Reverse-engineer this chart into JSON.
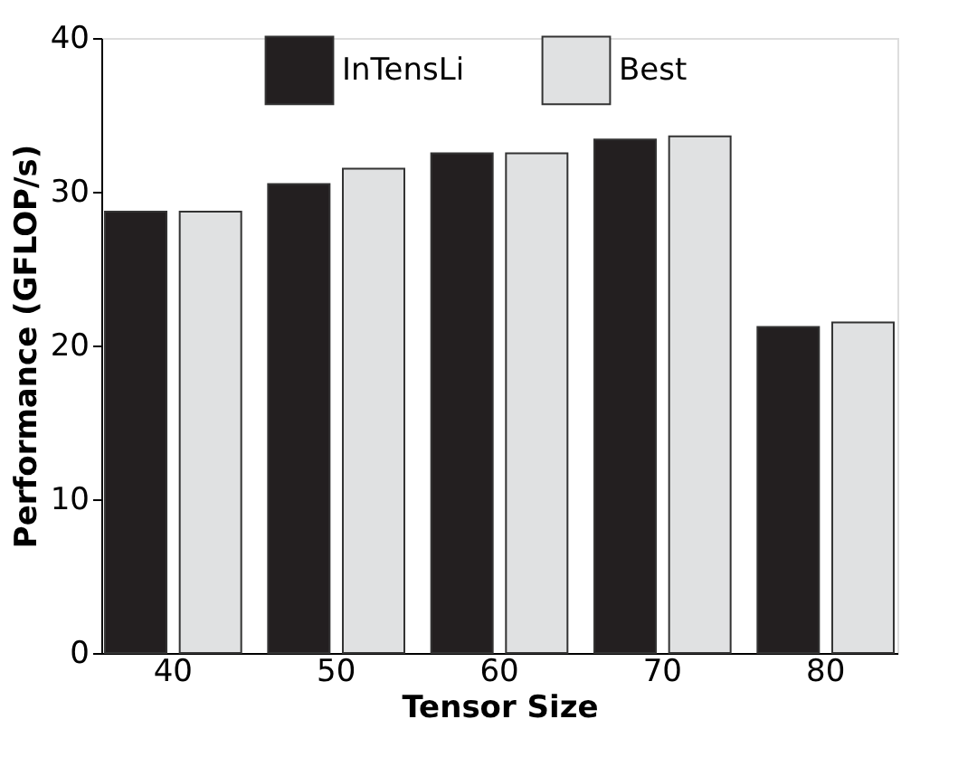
{
  "chart_data": {
    "type": "bar",
    "xlabel": "Tensor Size",
    "ylabel": "Performance (GFLOP/s)",
    "categories": [
      "40",
      "50",
      "60",
      "70",
      "80"
    ],
    "series": [
      {
        "name": "InTensLi",
        "color": "#231f20",
        "values": [
          28.7,
          30.5,
          32.5,
          33.4,
          21.2
        ]
      },
      {
        "name": "Best",
        "color": "#e0e1e2",
        "values": [
          28.7,
          31.5,
          32.5,
          33.6,
          21.5
        ]
      }
    ],
    "ylim": [
      0,
      40
    ],
    "yticks": [
      0,
      10,
      20,
      30,
      40
    ],
    "grid": false,
    "legend": "top"
  }
}
